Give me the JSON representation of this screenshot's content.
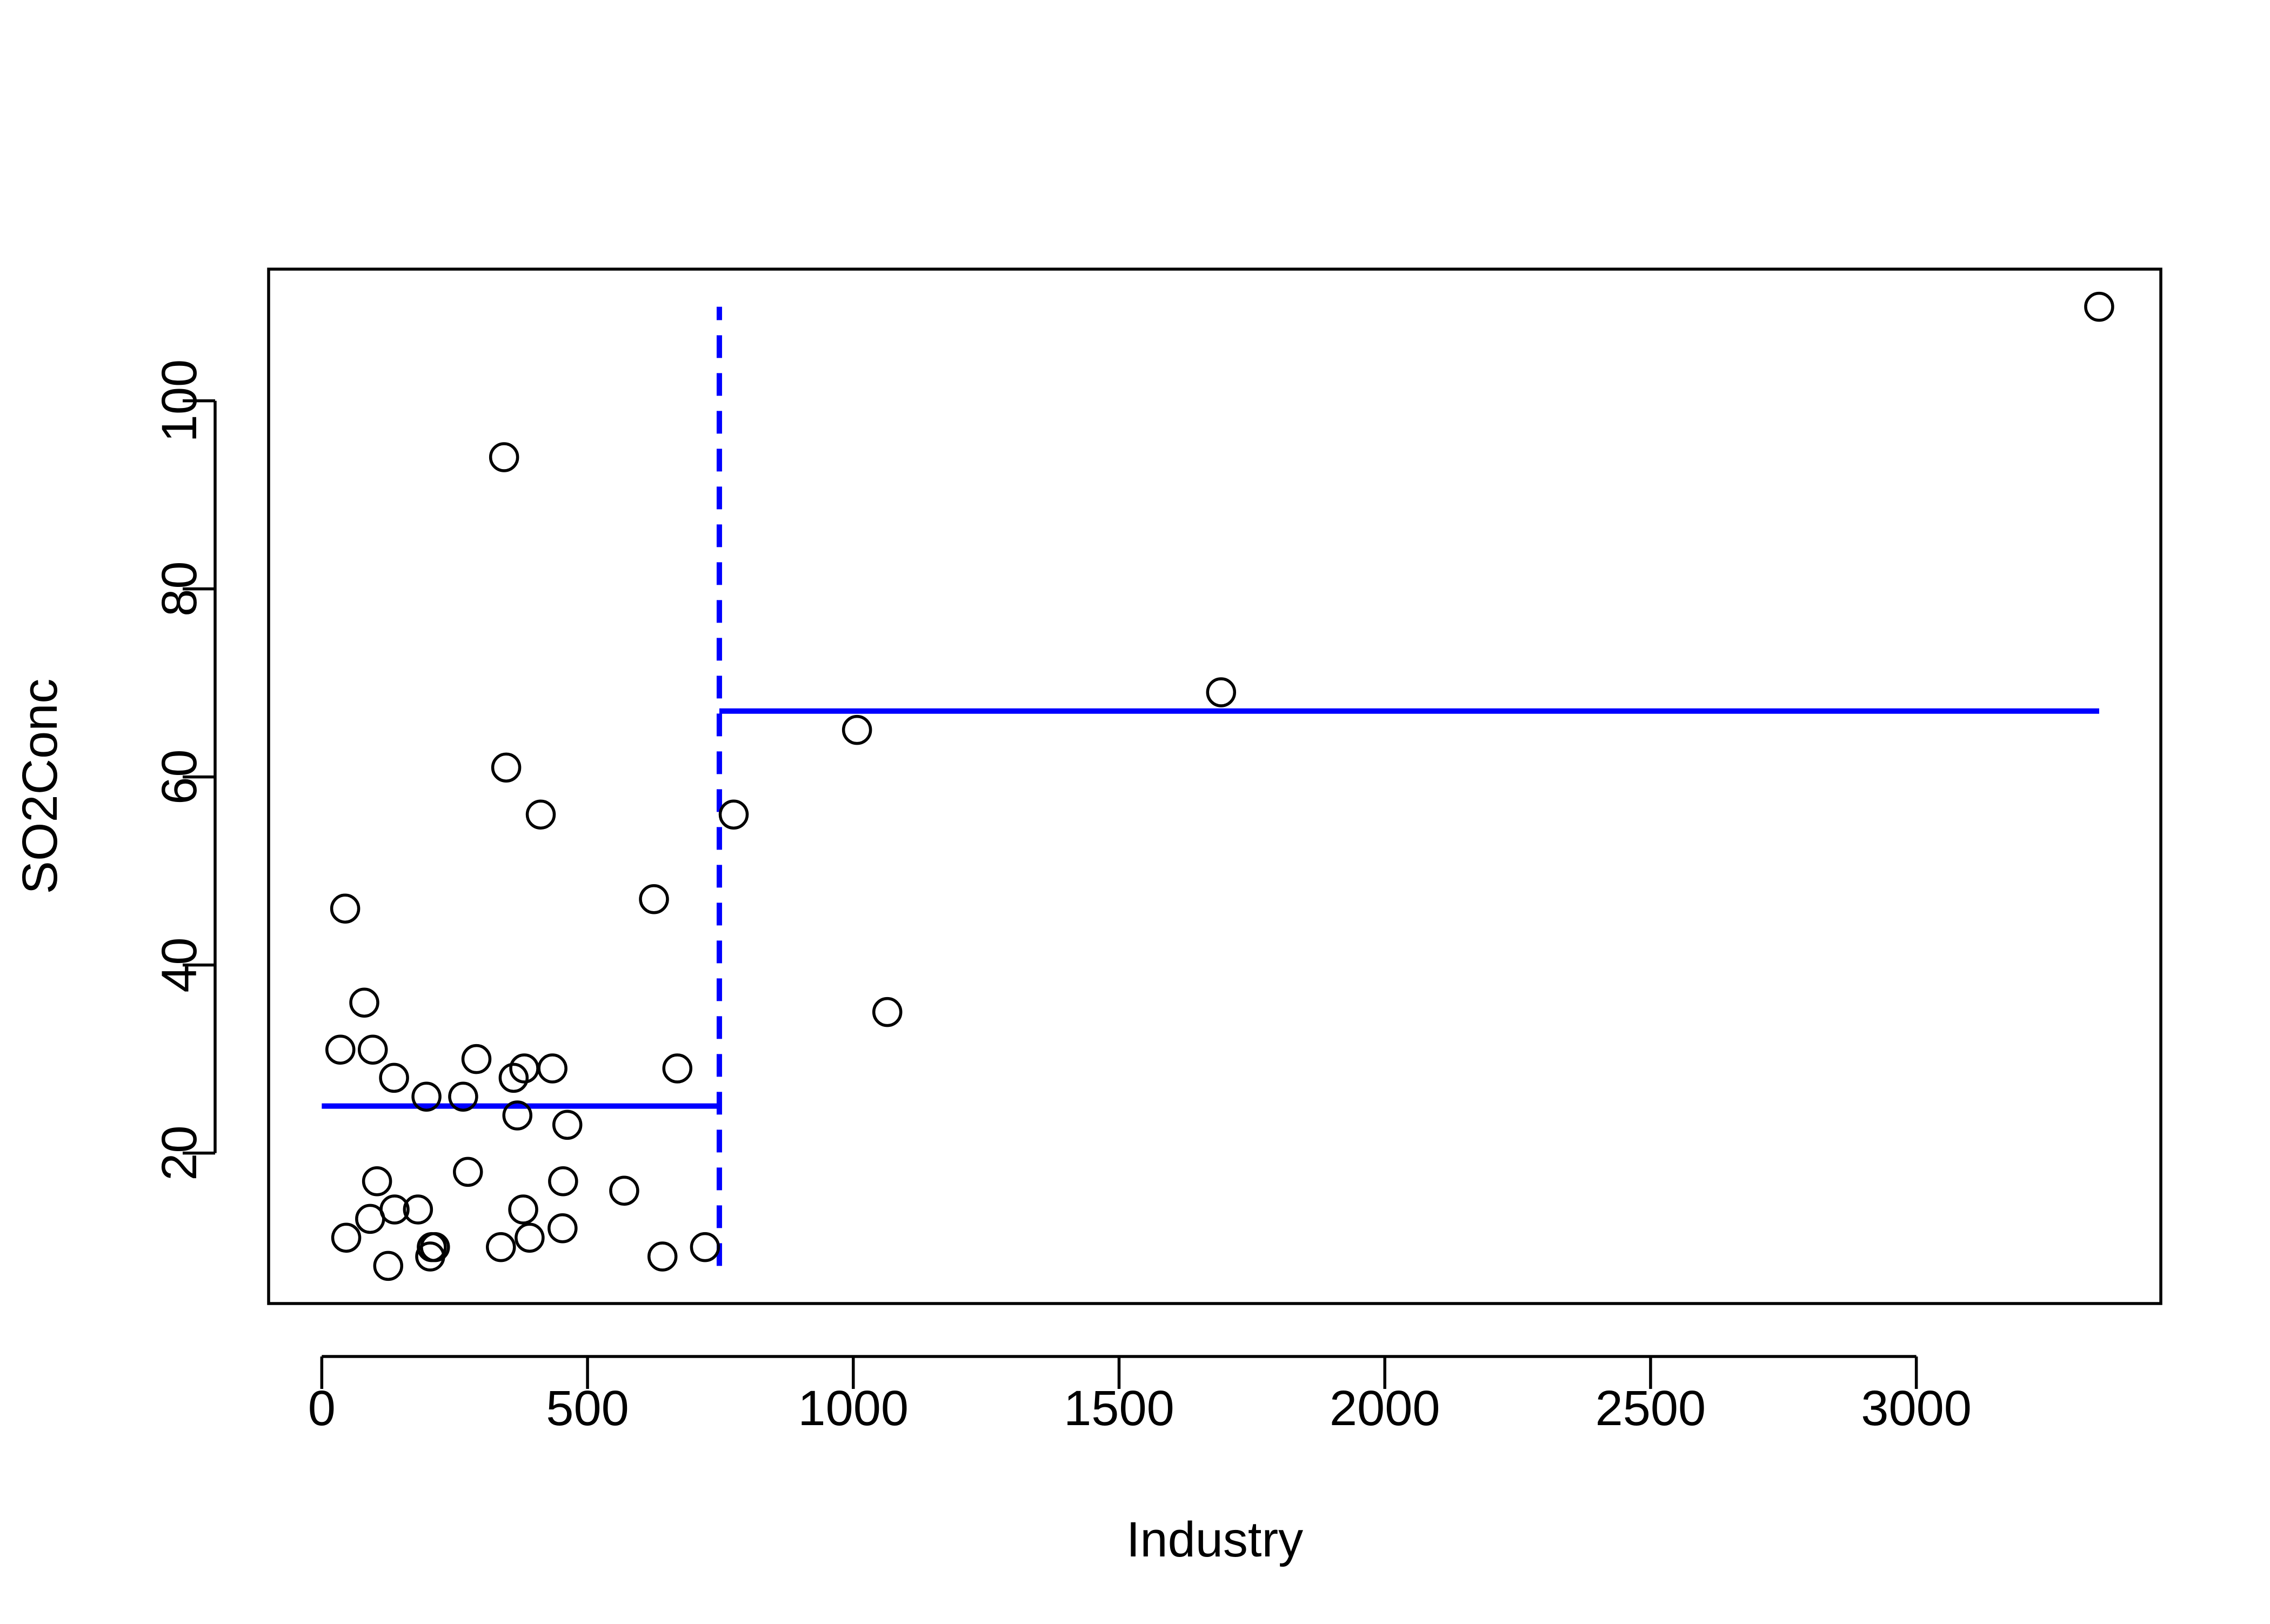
{
  "chart_data": {
    "type": "scatter",
    "title": "",
    "xlabel": "Industry",
    "ylabel": "SO2Conc",
    "xlim": [
      -100,
      3460
    ],
    "ylim": [
      4,
      114
    ],
    "xticks": [
      0,
      500,
      1000,
      1500,
      2000,
      2500,
      3000
    ],
    "yticks": [
      20,
      40,
      60,
      80,
      100
    ],
    "xtick_labels": [
      "0",
      "500",
      "1000",
      "1500",
      "2000",
      "2500",
      "3000"
    ],
    "ytick_labels": [
      "20",
      "40",
      "60",
      "80",
      "100"
    ],
    "grid": false,
    "legend": "none",
    "marker": "open-circle",
    "point_color": "#000000",
    "points": [
      {
        "x": 35,
        "y": 31
      },
      {
        "x": 44,
        "y": 46
      },
      {
        "x": 46,
        "y": 11
      },
      {
        "x": 80,
        "y": 36
      },
      {
        "x": 91,
        "y": 13
      },
      {
        "x": 96,
        "y": 31
      },
      {
        "x": 104,
        "y": 17
      },
      {
        "x": 125,
        "y": 8
      },
      {
        "x": 136,
        "y": 28
      },
      {
        "x": 137,
        "y": 14
      },
      {
        "x": 181,
        "y": 14
      },
      {
        "x": 197,
        "y": 26
      },
      {
        "x": 204,
        "y": 9
      },
      {
        "x": 207,
        "y": 10
      },
      {
        "x": 213,
        "y": 10
      },
      {
        "x": 266,
        "y": 26
      },
      {
        "x": 275,
        "y": 18
      },
      {
        "x": 291,
        "y": 30
      },
      {
        "x": 337,
        "y": 10
      },
      {
        "x": 343,
        "y": 94
      },
      {
        "x": 347,
        "y": 61
      },
      {
        "x": 361,
        "y": 28
      },
      {
        "x": 368,
        "y": 24
      },
      {
        "x": 379,
        "y": 14
      },
      {
        "x": 381,
        "y": 29
      },
      {
        "x": 391,
        "y": 11
      },
      {
        "x": 412,
        "y": 56
      },
      {
        "x": 434,
        "y": 29
      },
      {
        "x": 453,
        "y": 12
      },
      {
        "x": 454,
        "y": 17
      },
      {
        "x": 462,
        "y": 23
      },
      {
        "x": 569,
        "y": 16
      },
      {
        "x": 625,
        "y": 47
      },
      {
        "x": 641,
        "y": 9
      },
      {
        "x": 669,
        "y": 29
      },
      {
        "x": 721,
        "y": 10
      },
      {
        "x": 775,
        "y": 56
      },
      {
        "x": 1007,
        "y": 65
      },
      {
        "x": 1064,
        "y": 35
      },
      {
        "x": 1692,
        "y": 69
      },
      {
        "x": 3344,
        "y": 110
      }
    ],
    "overlays": [
      {
        "kind": "segment",
        "style": "solid",
        "color": "#0000ff",
        "x": [
          0,
          748
        ],
        "y": [
          25,
          25
        ]
      },
      {
        "kind": "segment",
        "style": "dashed",
        "color": "#0000ff",
        "x": [
          748,
          748
        ],
        "y": [
          8,
          110
        ]
      },
      {
        "kind": "segment",
        "style": "solid",
        "color": "#0000ff",
        "x": [
          748,
          3344
        ],
        "y": [
          67,
          67
        ]
      }
    ]
  }
}
